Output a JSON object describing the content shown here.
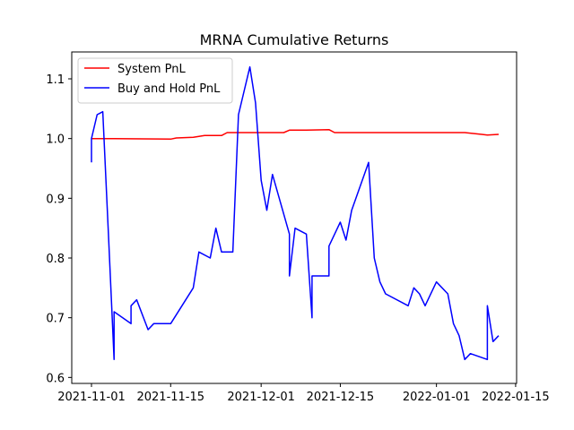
{
  "chart_data": {
    "type": "line",
    "title": "MRNA Cumulative Returns",
    "xlabel": "",
    "ylabel": "",
    "x_axis": "dates",
    "xlim": [
      "2021-11-01",
      "2022-01-12"
    ],
    "ylim": [
      0.59,
      1.145
    ],
    "xticks": [
      "2021-11-01",
      "2021-11-15",
      "2021-12-01",
      "2021-12-15",
      "2022-01-01",
      "2022-01-15"
    ],
    "yticks": [
      0.6,
      0.7,
      0.8,
      0.9,
      1.0,
      1.1
    ],
    "ytick_labels": [
      "0.6",
      "0.7",
      "0.8",
      "0.9",
      "1.0",
      "1.1"
    ],
    "grid": false,
    "legend_position": "top-left",
    "series": [
      {
        "name": "System PnL",
        "color": "#ff0000",
        "points": [
          [
            "2021-11-01",
            1.0
          ],
          [
            "2021-11-05",
            1.0
          ],
          [
            "2021-11-15",
            0.999
          ],
          [
            "2021-11-16",
            1.001
          ],
          [
            "2021-11-19",
            1.002
          ],
          [
            "2021-11-21",
            1.005
          ],
          [
            "2021-11-24",
            1.005
          ],
          [
            "2021-11-25",
            1.01
          ],
          [
            "2021-12-05",
            1.01
          ],
          [
            "2021-12-06",
            1.014
          ],
          [
            "2021-12-09",
            1.014
          ],
          [
            "2021-12-13",
            1.015
          ],
          [
            "2021-12-14",
            1.01
          ],
          [
            "2022-01-06",
            1.01
          ],
          [
            "2022-01-09",
            1.007
          ],
          [
            "2022-01-10",
            1.006
          ],
          [
            "2022-01-12",
            1.007
          ]
        ]
      },
      {
        "name": "Buy and Hold PnL",
        "color": "#0000ff",
        "points": [
          [
            "2021-11-01",
            0.96
          ],
          [
            "2021-11-01",
            1.0
          ],
          [
            "2021-11-02",
            1.04
          ],
          [
            "2021-11-03",
            1.045
          ],
          [
            "2021-11-04",
            0.84
          ],
          [
            "2021-11-05",
            0.63
          ],
          [
            "2021-11-05",
            0.71
          ],
          [
            "2021-11-08",
            0.69
          ],
          [
            "2021-11-08",
            0.72
          ],
          [
            "2021-11-09",
            0.73
          ],
          [
            "2021-11-11",
            0.68
          ],
          [
            "2021-11-12",
            0.69
          ],
          [
            "2021-11-15",
            0.69
          ],
          [
            "2021-11-17",
            0.72
          ],
          [
            "2021-11-19",
            0.75
          ],
          [
            "2021-11-20",
            0.81
          ],
          [
            "2021-11-22",
            0.8
          ],
          [
            "2021-11-23",
            0.85
          ],
          [
            "2021-11-24",
            0.81
          ],
          [
            "2021-11-26",
            0.81
          ],
          [
            "2021-11-27",
            1.04
          ],
          [
            "2021-11-29",
            1.12
          ],
          [
            "2021-11-30",
            1.06
          ],
          [
            "2021-12-01",
            0.93
          ],
          [
            "2021-12-02",
            0.88
          ],
          [
            "2021-12-03",
            0.94
          ],
          [
            "2021-12-06",
            0.84
          ],
          [
            "2021-12-06",
            0.77
          ],
          [
            "2021-12-07",
            0.85
          ],
          [
            "2021-12-09",
            0.84
          ],
          [
            "2021-12-10",
            0.7
          ],
          [
            "2021-12-10",
            0.77
          ],
          [
            "2021-12-13",
            0.77
          ],
          [
            "2021-12-13",
            0.82
          ],
          [
            "2021-12-15",
            0.86
          ],
          [
            "2021-12-16",
            0.83
          ],
          [
            "2021-12-17",
            0.88
          ],
          [
            "2021-12-20",
            0.96
          ],
          [
            "2021-12-21",
            0.8
          ],
          [
            "2021-12-22",
            0.76
          ],
          [
            "2021-12-23",
            0.74
          ],
          [
            "2021-12-27",
            0.72
          ],
          [
            "2021-12-28",
            0.75
          ],
          [
            "2021-12-29",
            0.74
          ],
          [
            "2021-12-30",
            0.72
          ],
          [
            "2022-01-01",
            0.76
          ],
          [
            "2022-01-03",
            0.74
          ],
          [
            "2022-01-04",
            0.69
          ],
          [
            "2022-01-05",
            0.67
          ],
          [
            "2022-01-06",
            0.63
          ],
          [
            "2022-01-07",
            0.64
          ],
          [
            "2022-01-10",
            0.63
          ],
          [
            "2022-01-10",
            0.72
          ],
          [
            "2022-01-11",
            0.66
          ],
          [
            "2022-01-12",
            0.67
          ]
        ]
      }
    ]
  }
}
